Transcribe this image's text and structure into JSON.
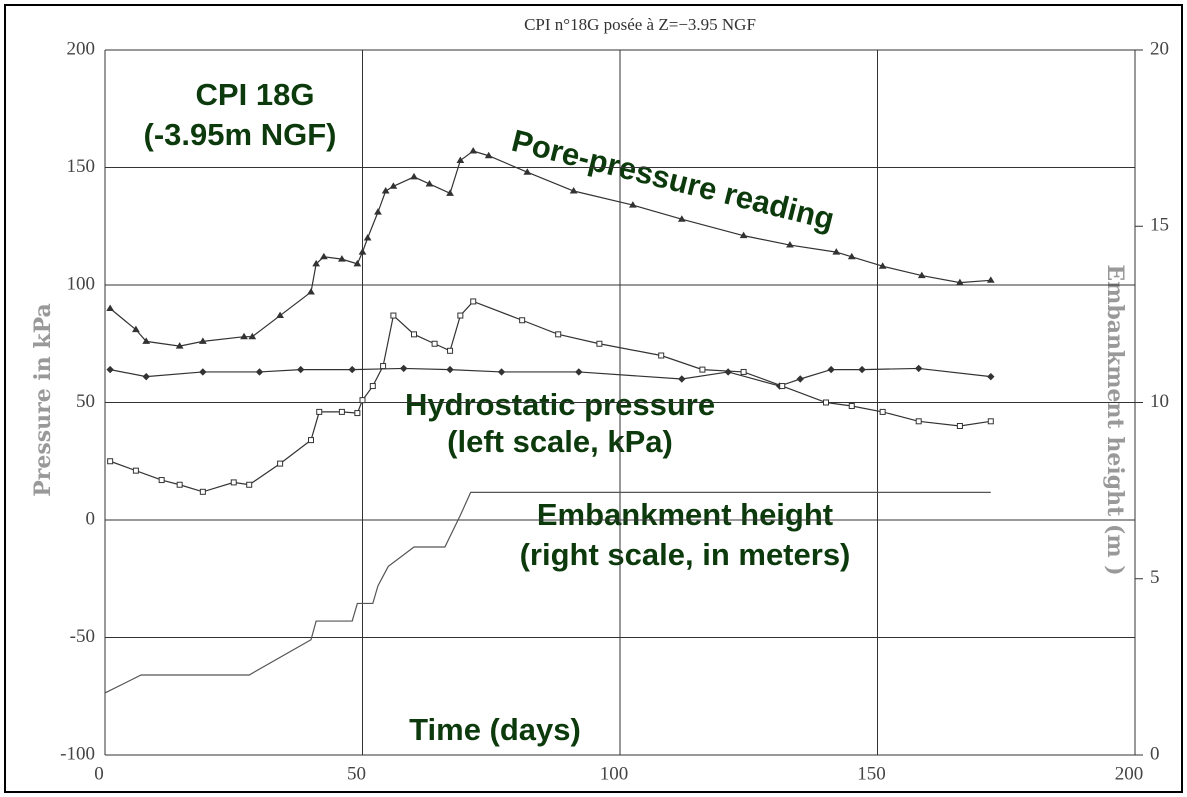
{
  "chart_data": {
    "type": "line",
    "title": "CPI n°18G posée à Z=−3.95 NGF",
    "y_label": "Pressure in kPa",
    "y2_label": "Embankment height (m )",
    "annotations": [
      "CPI 18G",
      "(-3.95m NGF)",
      "Pore-pressure reading",
      "Hydrostatic pressure",
      "(left scale, kPa)",
      "Embankment height",
      "(right scale, in meters)",
      "Time (days)"
    ],
    "xlim": [
      0,
      200
    ],
    "xticks": [
      0,
      50,
      100,
      150,
      200
    ],
    "ylim": [
      -100,
      200
    ],
    "yticks": [
      -100,
      -50,
      0,
      50,
      100,
      150,
      200
    ],
    "y2lim": [
      0,
      20
    ],
    "y2ticks": [
      0,
      5,
      10,
      15,
      20
    ],
    "grid": true,
    "series": [
      {
        "color": "#333333",
        "marker": "triangle",
        "x": [
          1,
          6,
          8,
          14.5,
          19,
          27,
          28.6,
          34,
          40,
          41,
          42.5,
          46,
          49,
          50,
          51,
          53,
          54.5,
          56,
          60,
          63,
          67,
          69,
          71.5,
          74.5,
          82,
          91,
          102.5,
          112,
          124,
          133,
          142,
          145,
          151,
          158.6,
          166,
          172
        ],
        "values": [
          90,
          81,
          76,
          74,
          76,
          78,
          78,
          87,
          97,
          109,
          112,
          111,
          109,
          114,
          120,
          131,
          140,
          142,
          146,
          143,
          139,
          153,
          157,
          155,
          148,
          140,
          134,
          128,
          121,
          117,
          114,
          112,
          108,
          104,
          101,
          102
        ]
      },
      {
        "color": "#333333",
        "marker": "diamond",
        "x": [
          1,
          8,
          19,
          30,
          38,
          48,
          58,
          67,
          77,
          92,
          112,
          121,
          131,
          135,
          141,
          147,
          158,
          172
        ],
        "values": [
          64,
          61,
          63,
          63,
          64,
          64,
          64.5,
          64,
          63,
          63,
          60,
          63,
          57,
          60,
          64,
          64,
          64.5,
          61
        ]
      },
      {
        "color": "#333333",
        "marker": "square",
        "x": [
          1,
          6,
          11,
          14.5,
          19,
          25,
          28,
          34,
          40,
          41.6,
          46,
          49,
          50,
          52,
          54,
          56,
          60,
          64,
          67,
          69,
          71.5,
          81,
          88,
          96,
          108,
          116,
          124,
          131.5,
          140,
          145,
          151,
          158,
          166,
          172
        ],
        "values": [
          25,
          21,
          17,
          15,
          12,
          16,
          15,
          24,
          34,
          46,
          46,
          45.5,
          51,
          57,
          65.5,
          87,
          79,
          75,
          72,
          87,
          93,
          85,
          79,
          75,
          70,
          64,
          63,
          57,
          50,
          48.5,
          46,
          42,
          40,
          42
        ]
      },
      {
        "color": "#555555",
        "marker": "none",
        "axis": "y2",
        "x": [
          0,
          7,
          28,
          40,
          41,
          48,
          49,
          52,
          53,
          55,
          60,
          66,
          69,
          71,
          172
        ],
        "values": [
          1.76,
          2.27,
          2.27,
          3.27,
          3.8,
          3.8,
          4.3,
          4.3,
          4.8,
          5.35,
          5.9,
          5.9,
          6.8,
          7.45,
          7.45
        ]
      }
    ]
  }
}
